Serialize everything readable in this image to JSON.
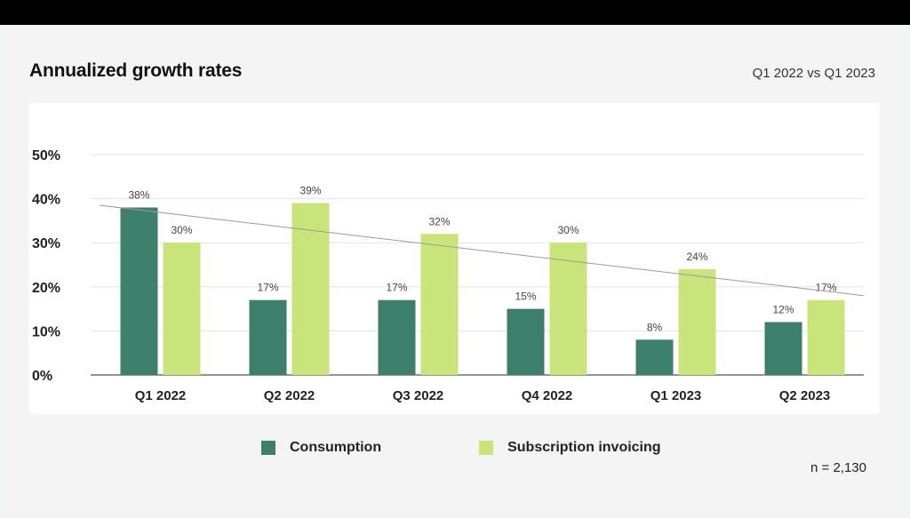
{
  "header": {
    "title": "Annualized growth rates",
    "subtitle": "Q1 2022 vs Q1 2023"
  },
  "footer": {
    "note": "n = 2,130"
  },
  "chart_data": {
    "type": "bar",
    "title": "Annualized growth rates",
    "subtitle": "Q1 2022 vs Q1 2023",
    "categories": [
      "Q1 2022",
      "Q2 2022",
      "Q3 2022",
      "Q4 2022",
      "Q1 2023",
      "Q2 2023"
    ],
    "series": [
      {
        "name": "Consumption",
        "values": [
          38,
          17,
          17,
          15,
          8,
          12
        ],
        "labels": [
          "38%",
          "17%",
          "17%",
          "15%",
          "8%",
          "12%"
        ],
        "color": "#3e7f6b"
      },
      {
        "name": "Subscription invoicing",
        "values": [
          30,
          39,
          32,
          30,
          24,
          17
        ],
        "labels": [
          "30%",
          "39%",
          "32%",
          "30%",
          "24%",
          "17%"
        ],
        "color": "#c8e47a"
      }
    ],
    "yticks": [
      0,
      10,
      20,
      30,
      40,
      50
    ],
    "ytick_labels": [
      "0%",
      "10%",
      "20%",
      "30%",
      "40%",
      "50%"
    ],
    "ylim": [
      0,
      50
    ],
    "trendline": {
      "start": 38.5,
      "end": 18
    },
    "grid": true,
    "legend_position": "bottom"
  }
}
